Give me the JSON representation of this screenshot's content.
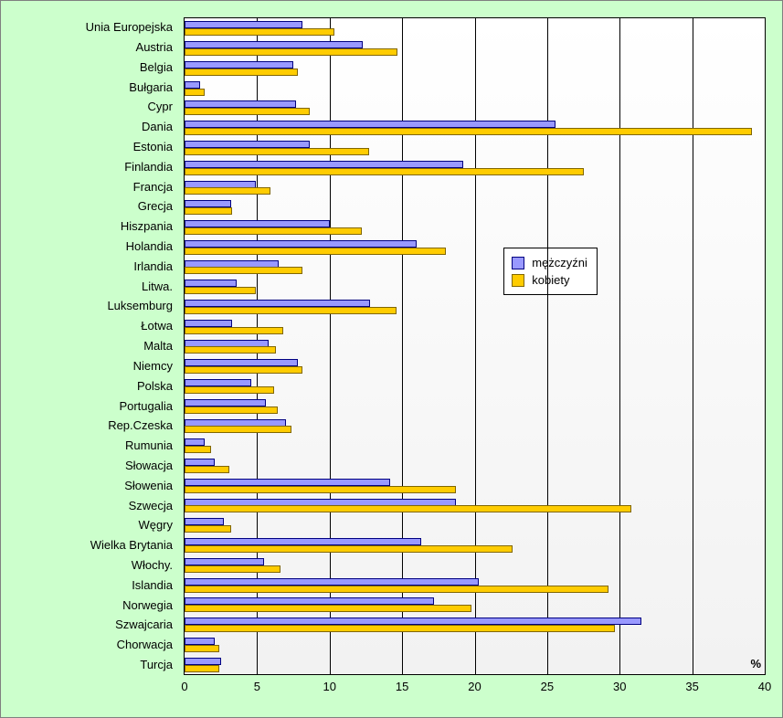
{
  "chart": {
    "type": "bar-horizontal-grouped",
    "background_color": "#ccffcc",
    "plot_bg_from": "#ffffff",
    "plot_bg_to": "#f2f2f2",
    "grid_color": "#000000",
    "border_color": "#000000",
    "bar_colors": {
      "m": "#9999ff",
      "f": "#ffcc00"
    },
    "bar_border_colors": {
      "m": "#000080",
      "f": "#806600"
    },
    "label_fontsize": 13,
    "xlim_max": 40,
    "xtick_step": 5,
    "xticks": [
      "0",
      "5",
      "10",
      "15",
      "20",
      "25",
      "30",
      "35",
      "40"
    ],
    "pct_label": "%",
    "legend": {
      "entries": [
        {
          "key": "m",
          "label": "mężczyźni"
        },
        {
          "key": "f",
          "label": "kobiety"
        }
      ]
    },
    "categories": [
      {
        "label": "Unia Europejska",
        "m": 8.1,
        "f": 10.3
      },
      {
        "label": "Austria",
        "m": 12.3,
        "f": 14.7
      },
      {
        "label": "Belgia",
        "m": 7.5,
        "f": 7.8
      },
      {
        "label": "Bułgaria",
        "m": 1.1,
        "f": 1.4
      },
      {
        "label": "Cypr",
        "m": 7.7,
        "f": 8.6
      },
      {
        "label": "Dania",
        "m": 25.6,
        "f": 39.1
      },
      {
        "label": "Estonia",
        "m": 8.6,
        "f": 12.7
      },
      {
        "label": "Finlandia",
        "m": 19.2,
        "f": 27.5
      },
      {
        "label": "Francja",
        "m": 4.9,
        "f": 5.9
      },
      {
        "label": "Grecja",
        "m": 3.2,
        "f": 3.3
      },
      {
        "label": "Hiszpania",
        "m": 10.0,
        "f": 12.2
      },
      {
        "label": "Holandia",
        "m": 16.0,
        "f": 18.0
      },
      {
        "label": "Irlandia",
        "m": 6.5,
        "f": 8.1
      },
      {
        "label": "Litwa.",
        "m": 3.6,
        "f": 4.9
      },
      {
        "label": "Luksemburg",
        "m": 12.8,
        "f": 14.6
      },
      {
        "label": "Łotwa",
        "m": 3.3,
        "f": 6.8
      },
      {
        "label": "Malta",
        "m": 5.8,
        "f": 6.3
      },
      {
        "label": "Niemcy",
        "m": 7.8,
        "f": 8.1
      },
      {
        "label": "Polska",
        "m": 4.6,
        "f": 6.2
      },
      {
        "label": "Portugalia",
        "m": 5.6,
        "f": 6.4
      },
      {
        "label": "Rep.Czeska",
        "m": 7.0,
        "f": 7.4
      },
      {
        "label": "Rumunia",
        "m": 1.4,
        "f": 1.8
      },
      {
        "label": "Słowacja",
        "m": 2.1,
        "f": 3.1
      },
      {
        "label": "Słowenia",
        "m": 14.2,
        "f": 18.7
      },
      {
        "label": "Szwecja",
        "m": 18.7,
        "f": 30.8
      },
      {
        "label": "Węgry",
        "m": 2.7,
        "f": 3.2
      },
      {
        "label": "Wielka Brytania",
        "m": 16.3,
        "f": 22.6
      },
      {
        "label": "Włochy.",
        "m": 5.5,
        "f": 6.6
      },
      {
        "label": "Islandia",
        "m": 20.3,
        "f": 29.2
      },
      {
        "label": "Norwegia",
        "m": 17.2,
        "f": 19.8
      },
      {
        "label": "Szwajcaria",
        "m": 31.5,
        "f": 29.7
      },
      {
        "label": "Chorwacja",
        "m": 2.1,
        "f": 2.4
      },
      {
        "label": "Turcja",
        "m": 2.5,
        "f": 2.4
      }
    ]
  }
}
